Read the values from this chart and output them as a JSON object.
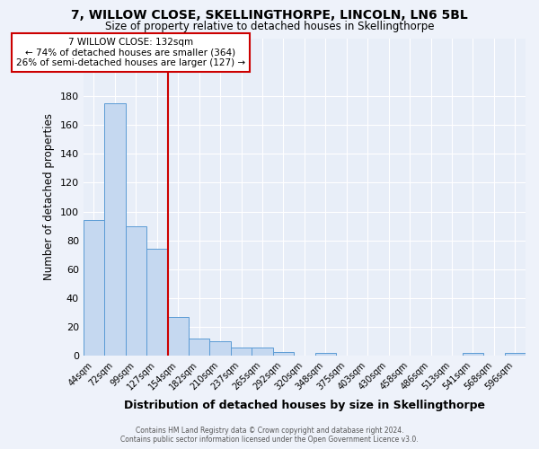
{
  "title": "7, WILLOW CLOSE, SKELLINGTHORPE, LINCOLN, LN6 5BL",
  "subtitle": "Size of property relative to detached houses in Skellingthorpe",
  "xlabel": "Distribution of detached houses by size in Skellingthorpe",
  "ylabel": "Number of detached properties",
  "bar_labels": [
    "44sqm",
    "72sqm",
    "99sqm",
    "127sqm",
    "154sqm",
    "182sqm",
    "210sqm",
    "237sqm",
    "265sqm",
    "292sqm",
    "320sqm",
    "348sqm",
    "375sqm",
    "403sqm",
    "430sqm",
    "458sqm",
    "486sqm",
    "513sqm",
    "541sqm",
    "568sqm",
    "596sqm"
  ],
  "bar_values": [
    94,
    175,
    90,
    74,
    27,
    12,
    10,
    6,
    6,
    3,
    0,
    2,
    0,
    0,
    0,
    0,
    0,
    0,
    2,
    0,
    2
  ],
  "bar_color": "#c5d8f0",
  "bar_edge_color": "#5b9bd5",
  "vline_color": "#cc0000",
  "annotation_line1": "7 WILLOW CLOSE: 132sqm",
  "annotation_line2": "← 74% of detached houses are smaller (364)",
  "annotation_line3": "26% of semi-detached houses are larger (127) →",
  "annotation_box_edge": "#cc0000",
  "ylim": [
    0,
    220
  ],
  "background_color": "#e8eef8",
  "fig_background": "#eef2fa",
  "grid_color": "#ffffff",
  "footer_line1": "Contains HM Land Registry data © Crown copyright and database right 2024.",
  "footer_line2": "Contains public sector information licensed under the Open Government Licence v3.0."
}
